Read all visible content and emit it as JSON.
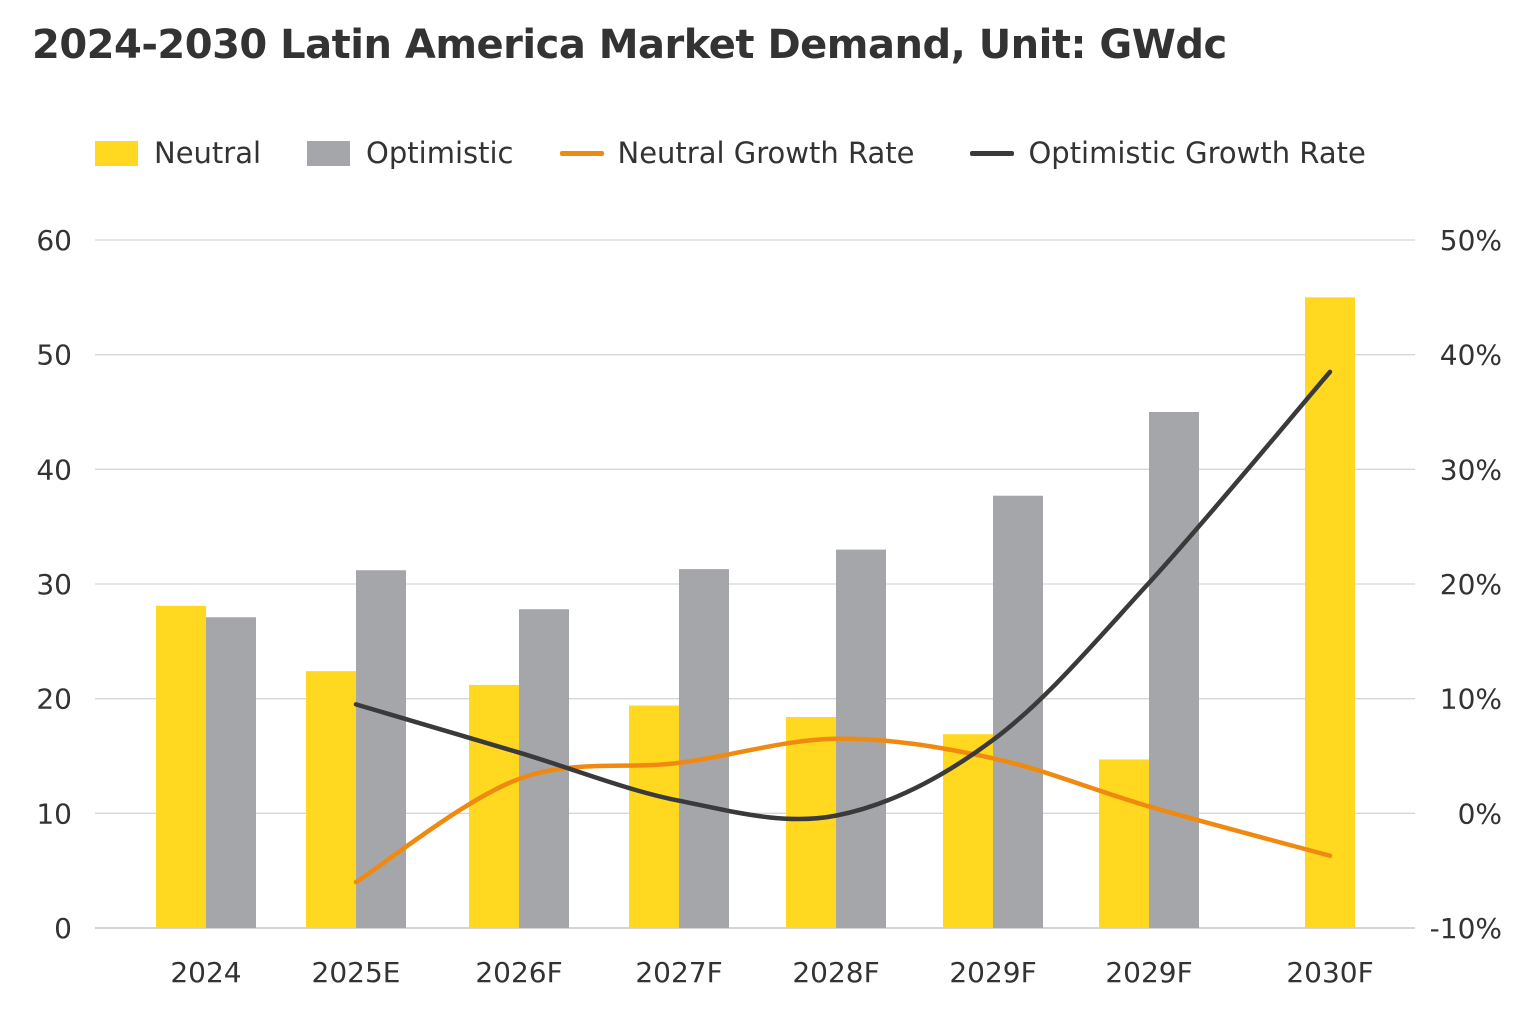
{
  "chart_data": {
    "type": "bar",
    "title": "2024-2030 Latin America Market Demand, Unit: GWdc",
    "categories": [
      "2024",
      "2025E",
      "2026F",
      "2027F",
      "2028F",
      "2029F",
      "2029F",
      "2030F"
    ],
    "series": [
      {
        "name": "Neutral",
        "kind": "bar",
        "axis": "left",
        "color": "#FFD81F",
        "values": [
          28.1,
          22.4,
          21.2,
          19.4,
          18.4,
          16.9,
          14.7,
          55.0
        ]
      },
      {
        "name": "Optimistic",
        "kind": "bar",
        "axis": "left",
        "color": "#A5A6AA",
        "values": [
          27.1,
          31.2,
          27.8,
          31.3,
          33.0,
          37.7,
          45.0,
          null
        ]
      },
      {
        "name": "Neutral Growth Rate",
        "kind": "line",
        "axis": "right",
        "color": "#F0890F",
        "values": [
          null,
          -6.0,
          3.0,
          4.4,
          6.5,
          4.8,
          0.6,
          -3.7
        ]
      },
      {
        "name": "Optimistic Growth Rate",
        "kind": "line",
        "axis": "right",
        "color": "#3A3A3A",
        "values": [
          null,
          9.5,
          5.3,
          1.1,
          -0.2,
          6.4,
          20.1,
          38.5
        ]
      }
    ],
    "y_left": {
      "ylim": [
        0,
        60
      ],
      "ticks": [
        "0",
        "10",
        "20",
        "30",
        "40",
        "50",
        "60"
      ]
    },
    "y_right": {
      "ylim": [
        -10,
        50
      ],
      "ticks": [
        "-10%",
        "0%",
        "10%",
        "20%",
        "30%",
        "40%",
        "50%"
      ]
    },
    "grid": true,
    "legend_position": "top"
  }
}
